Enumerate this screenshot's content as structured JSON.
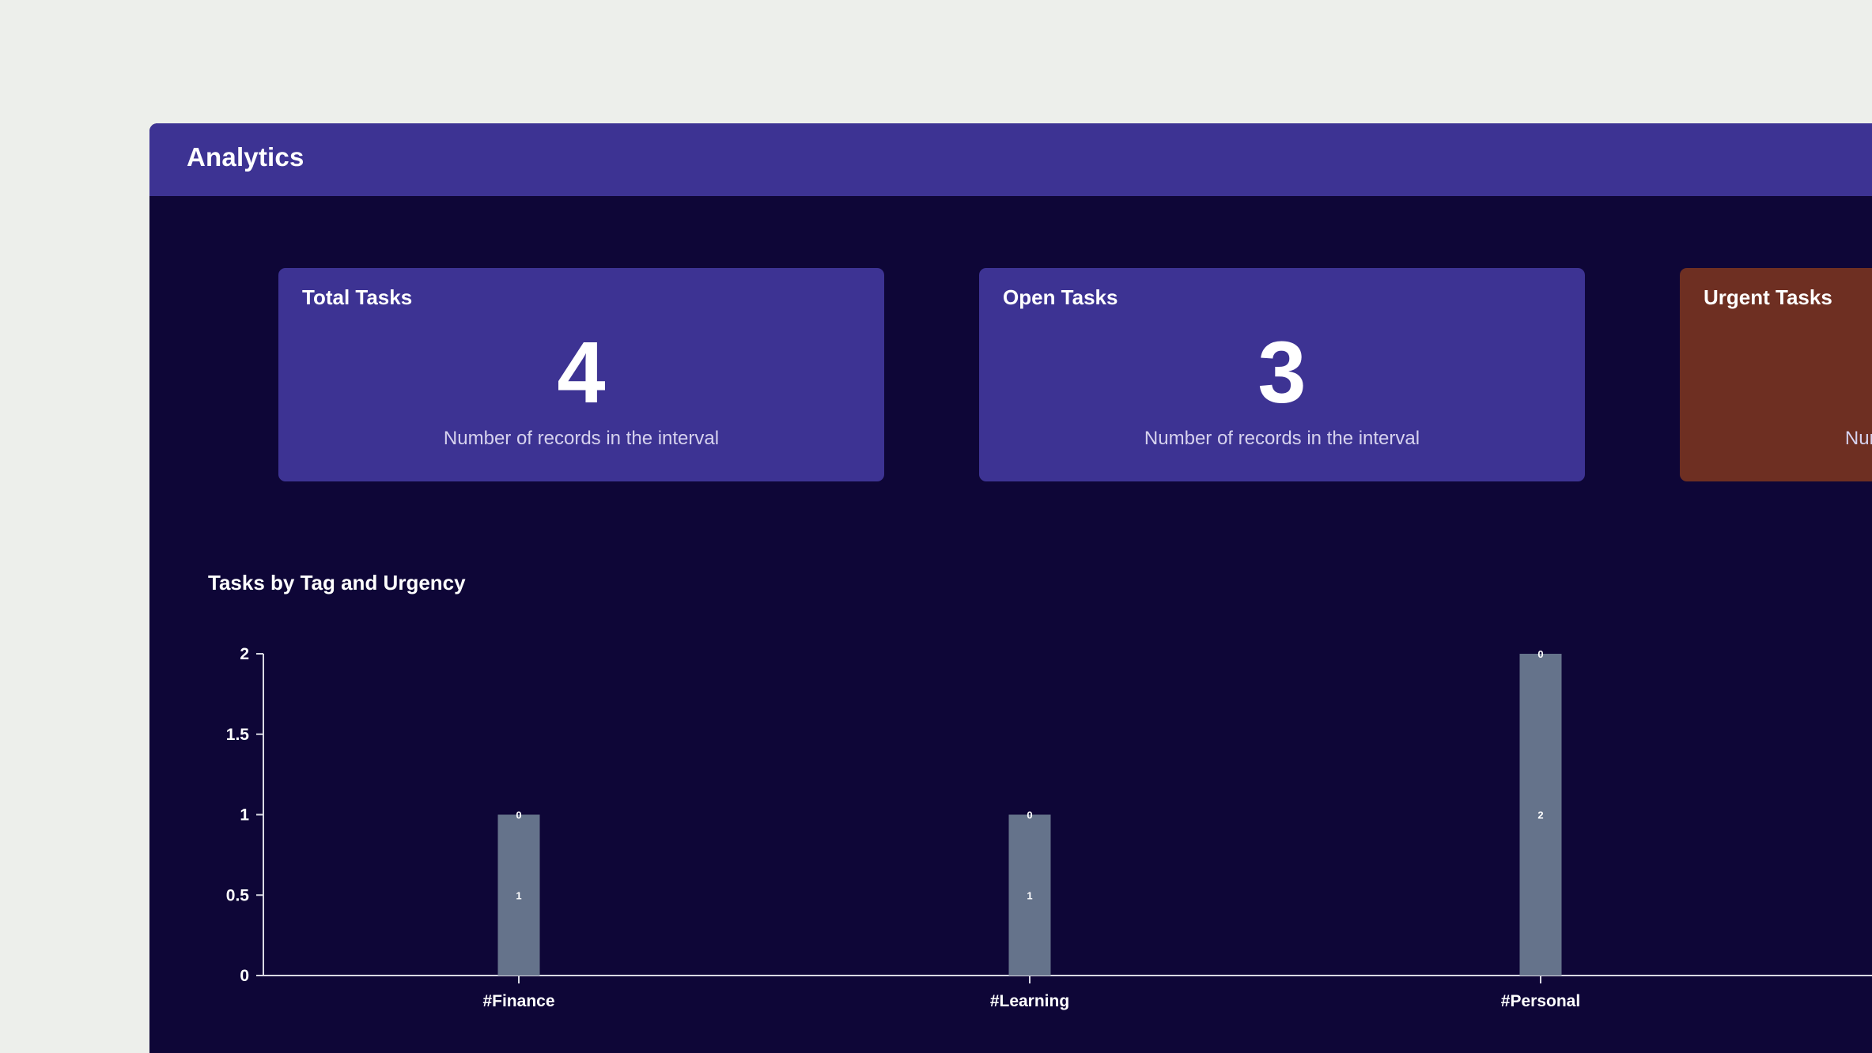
{
  "header": {
    "title": "Analytics"
  },
  "cards": [
    {
      "title": "Total Tasks",
      "value": "4",
      "caption": "Number of records in the interval",
      "color": "#3d3393"
    },
    {
      "title": "Open Tasks",
      "value": "3",
      "caption": "Number of records in the interval",
      "color": "#3d3393"
    },
    {
      "title": "Urgent Tasks",
      "value": "",
      "caption": "Number of records in the interval",
      "color": "#6e2f22"
    }
  ],
  "chart_title": "Tasks by Tag and Urgency",
  "chart_data": {
    "type": "bar",
    "title": "Tasks by Tag and Urgency",
    "xlabel": "",
    "ylabel": "",
    "categories": [
      "#Finance",
      "#Learning",
      "#Personal"
    ],
    "series": [
      {
        "values": [
          1,
          1,
          2
        ],
        "color": "#65738b"
      },
      {
        "values": [
          0,
          0,
          0
        ],
        "color": "#65738b"
      }
    ],
    "ylim": [
      0,
      2
    ],
    "yticks": [
      "0",
      "0.5",
      "1",
      "1.5",
      "2"
    ],
    "grid": false,
    "stacked": true
  }
}
